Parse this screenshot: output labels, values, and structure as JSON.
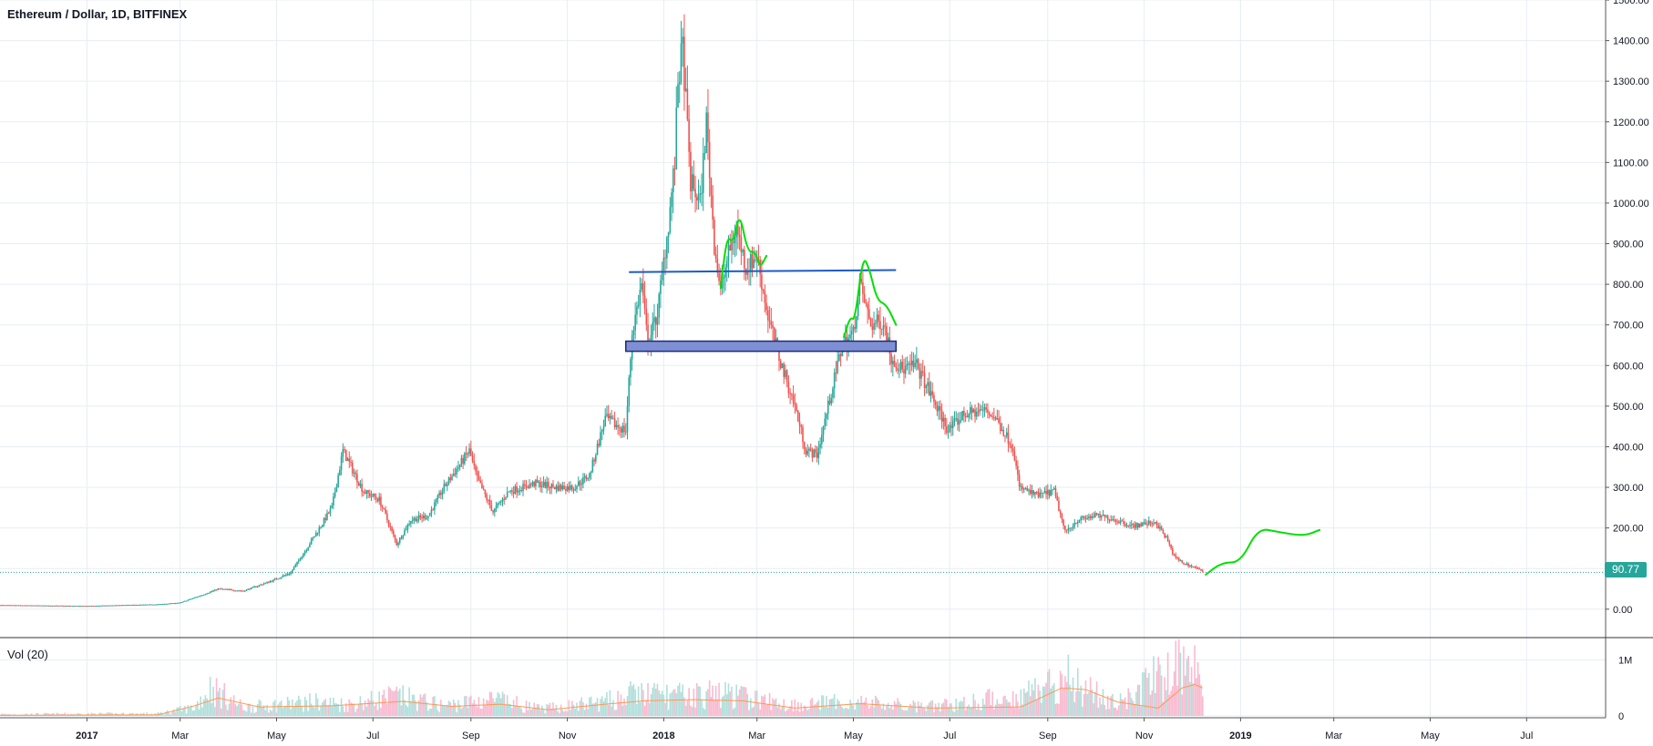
{
  "header": {
    "title": "Ethereum / Dollar, 1D, BITFINEX"
  },
  "volume_pane": {
    "title": "Vol (20)"
  },
  "colors": {
    "up": "#26a69a",
    "down": "#ef5350",
    "grid": "#e8edf3",
    "axis_text": "#131722",
    "last_price": "#26a69a",
    "support_zone_fill": "#7e8fd3",
    "support_zone_border": "#1e2a7a",
    "resistance_line": "#1e5bc6",
    "projection": "#00e000",
    "volume_ma": "#ff9850"
  },
  "chart_data": [
    {
      "type": "candlestick",
      "title": "Ethereum / Dollar, 1D, BITFINEX",
      "y_ticks": [
        "0.00",
        "100.00",
        "200.00",
        "300.00",
        "400.00",
        "500.00",
        "600.00",
        "700.00",
        "800.00",
        "900.00",
        "1000.00",
        "1100.00",
        "1200.00",
        "1300.00",
        "1400.00",
        "1500.00"
      ],
      "x_ticks": [
        "2017",
        "Mar",
        "May",
        "Jul",
        "Sep",
        "Nov",
        "2018",
        "Mar",
        "May",
        "Jul",
        "Sep",
        "Nov",
        "2019",
        "Mar",
        "May",
        "Jul"
      ],
      "x_range": [
        "2016-11-07",
        "2019-08-20"
      ],
      "ylim": [
        -70,
        1500
      ],
      "last_price": {
        "value": 90.77,
        "label": "90.77"
      },
      "price_path": [
        [
          "2016-11-07",
          10
        ],
        [
          "2017-01-01",
          8
        ],
        [
          "2017-02-15",
          12
        ],
        [
          "2017-03-01",
          16
        ],
        [
          "2017-03-15",
          35
        ],
        [
          "2017-03-25",
          50
        ],
        [
          "2017-04-10",
          45
        ],
        [
          "2017-04-28",
          70
        ],
        [
          "2017-05-10",
          90
        ],
        [
          "2017-05-25",
          180
        ],
        [
          "2017-06-05",
          250
        ],
        [
          "2017-06-12",
          390
        ],
        [
          "2017-06-25",
          290
        ],
        [
          "2017-07-05",
          270
        ],
        [
          "2017-07-16",
          160
        ],
        [
          "2017-07-25",
          220
        ],
        [
          "2017-08-05",
          230
        ],
        [
          "2017-08-15",
          300
        ],
        [
          "2017-08-31",
          390
        ],
        [
          "2017-09-05",
          320
        ],
        [
          "2017-09-15",
          240
        ],
        [
          "2017-09-25",
          290
        ],
        [
          "2017-10-12",
          310
        ],
        [
          "2017-10-25",
          300
        ],
        [
          "2017-11-05",
          300
        ],
        [
          "2017-11-15",
          330
        ],
        [
          "2017-11-25",
          470
        ],
        [
          "2017-12-03",
          450
        ],
        [
          "2017-12-08",
          440
        ],
        [
          "2017-12-12",
          680
        ],
        [
          "2017-12-18",
          800
        ],
        [
          "2017-12-22",
          650
        ],
        [
          "2017-12-28",
          730
        ],
        [
          "2018-01-04",
          950
        ],
        [
          "2018-01-08",
          1100
        ],
        [
          "2018-01-10",
          1300
        ],
        [
          "2018-01-13",
          1380
        ],
        [
          "2018-01-18",
          1050
        ],
        [
          "2018-01-24",
          1000
        ],
        [
          "2018-01-28",
          1200
        ],
        [
          "2018-02-02",
          900
        ],
        [
          "2018-02-06",
          780
        ],
        [
          "2018-02-10",
          860
        ],
        [
          "2018-02-16",
          940
        ],
        [
          "2018-02-22",
          840
        ],
        [
          "2018-03-01",
          870
        ],
        [
          "2018-03-08",
          720
        ],
        [
          "2018-03-15",
          620
        ],
        [
          "2018-03-25",
          500
        ],
        [
          "2018-04-01",
          390
        ],
        [
          "2018-04-08",
          380
        ],
        [
          "2018-04-15",
          500
        ],
        [
          "2018-04-24",
          650
        ],
        [
          "2018-05-01",
          680
        ],
        [
          "2018-05-05",
          800
        ],
        [
          "2018-05-12",
          700
        ],
        [
          "2018-05-20",
          710
        ],
        [
          "2018-05-25",
          620
        ],
        [
          "2018-06-01",
          590
        ],
        [
          "2018-06-10",
          600
        ],
        [
          "2018-06-20",
          520
        ],
        [
          "2018-06-30",
          440
        ],
        [
          "2018-07-10",
          480
        ],
        [
          "2018-07-24",
          490
        ],
        [
          "2018-07-30",
          470
        ],
        [
          "2018-08-10",
          400
        ],
        [
          "2018-08-14",
          300
        ],
        [
          "2018-08-25",
          280
        ],
        [
          "2018-09-05",
          290
        ],
        [
          "2018-09-12",
          190
        ],
        [
          "2018-09-20",
          220
        ],
        [
          "2018-10-01",
          230
        ],
        [
          "2018-10-10",
          225
        ],
        [
          "2018-10-25",
          205
        ],
        [
          "2018-11-08",
          215
        ],
        [
          "2018-11-15",
          175
        ],
        [
          "2018-11-20",
          130
        ],
        [
          "2018-11-25",
          115
        ],
        [
          "2018-12-05",
          100
        ],
        [
          "2018-12-08",
          90.77
        ]
      ],
      "annotations": {
        "resistance_line": {
          "from": "2017-12-10",
          "to": "2018-05-28",
          "price": [
            830,
            835
          ]
        },
        "support_zone": {
          "from": "2017-12-08",
          "to": "2018-05-28",
          "price": [
            635,
            660
          ]
        },
        "projection_path": [
          [
            "2018-12-10",
            85
          ],
          [
            "2018-12-20",
            115
          ],
          [
            "2019-01-01",
            115
          ],
          [
            "2019-01-12",
            200
          ],
          [
            "2019-01-25",
            190
          ],
          [
            "2019-02-10",
            180
          ],
          [
            "2019-02-20",
            195
          ]
        ],
        "pattern_curve_1": [
          [
            "2018-02-06",
            790
          ],
          [
            "2018-02-10",
            920
          ],
          [
            "2018-02-14",
            900
          ],
          [
            "2018-02-18",
            980
          ],
          [
            "2018-02-23",
            880
          ],
          [
            "2018-02-28",
            880
          ],
          [
            "2018-03-03",
            840
          ],
          [
            "2018-03-07",
            870
          ]
        ],
        "pattern_curve_2": [
          [
            "2018-04-25",
            670
          ],
          [
            "2018-04-29",
            720
          ],
          [
            "2018-05-02",
            710
          ],
          [
            "2018-05-07",
            870
          ],
          [
            "2018-05-11",
            840
          ],
          [
            "2018-05-16",
            760
          ],
          [
            "2018-05-22",
            750
          ],
          [
            "2018-05-28",
            700
          ]
        ]
      }
    },
    {
      "type": "bar",
      "title": "Vol (20)",
      "y_ticks": [
        "0",
        "1M"
      ],
      "ylim": [
        0,
        1300000
      ],
      "volume_path": [
        [
          "2016-11-07",
          30000
        ],
        [
          "2017-02-15",
          40000
        ],
        [
          "2017-03-10",
          150000
        ],
        [
          "2017-03-20",
          500000
        ],
        [
          "2017-04-10",
          150000
        ],
        [
          "2017-05-25",
          250000
        ],
        [
          "2017-06-15",
          200000
        ],
        [
          "2017-07-16",
          350000
        ],
        [
          "2017-08-15",
          180000
        ],
        [
          "2017-09-15",
          300000
        ],
        [
          "2017-10-15",
          120000
        ],
        [
          "2017-11-25",
          250000
        ],
        [
          "2017-12-15",
          400000
        ],
        [
          "2018-01-10",
          350000
        ],
        [
          "2018-02-06",
          400000
        ],
        [
          "2018-03-20",
          200000
        ],
        [
          "2018-05-01",
          250000
        ],
        [
          "2018-06-15",
          150000
        ],
        [
          "2018-08-14",
          350000
        ],
        [
          "2018-09-12",
          700000
        ],
        [
          "2018-10-15",
          200000
        ],
        [
          "2018-11-20",
          900000
        ],
        [
          "2018-12-08",
          700000
        ]
      ],
      "ma_path": [
        [
          "2016-11-07",
          10000
        ],
        [
          "2017-02-15",
          20000
        ],
        [
          "2017-03-10",
          180000
        ],
        [
          "2017-03-25",
          320000
        ],
        [
          "2017-04-20",
          160000
        ],
        [
          "2017-06-05",
          180000
        ],
        [
          "2017-07-20",
          260000
        ],
        [
          "2017-08-20",
          170000
        ],
        [
          "2017-09-20",
          210000
        ],
        [
          "2017-10-20",
          110000
        ],
        [
          "2017-11-25",
          210000
        ],
        [
          "2017-12-20",
          270000
        ],
        [
          "2018-01-20",
          290000
        ],
        [
          "2018-02-20",
          270000
        ],
        [
          "2018-03-25",
          140000
        ],
        [
          "2018-05-05",
          220000
        ],
        [
          "2018-06-20",
          140000
        ],
        [
          "2018-08-15",
          160000
        ],
        [
          "2018-09-10",
          500000
        ],
        [
          "2018-09-25",
          470000
        ],
        [
          "2018-10-15",
          250000
        ],
        [
          "2018-11-10",
          140000
        ],
        [
          "2018-11-25",
          500000
        ],
        [
          "2018-12-03",
          560000
        ],
        [
          "2018-12-08",
          500000
        ]
      ]
    }
  ]
}
